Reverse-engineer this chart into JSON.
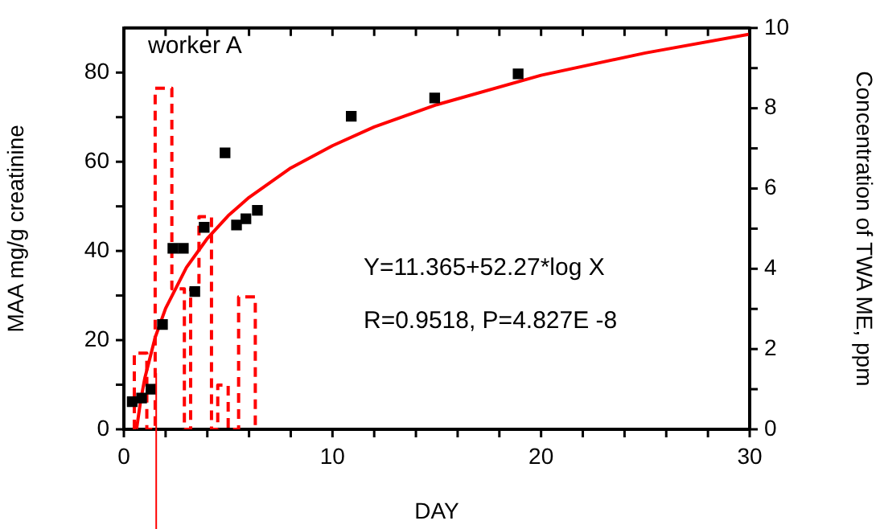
{
  "chart_data": {
    "type": "scatter",
    "xlabel": "DAY",
    "ylabel": "MAA mg/g creatinine",
    "y2label": "Concentration of TWA ME, ppm",
    "xlim": [
      0,
      30
    ],
    "xticks": [
      0,
      {
        "value": 2,
        "label": null
      },
      {
        "value": 4,
        "label": null
      },
      {
        "value": 6,
        "label": null
      },
      {
        "value": 8,
        "label": null
      },
      10,
      {
        "value": 12,
        "label": null
      },
      {
        "value": 14,
        "label": null
      },
      {
        "value": 16,
        "label": null
      },
      {
        "value": 18,
        "label": null
      },
      20,
      {
        "value": 22,
        "label": null
      },
      {
        "value": 24,
        "label": null
      },
      {
        "value": 26,
        "label": null
      },
      {
        "value": 28,
        "label": null
      },
      30
    ],
    "ylim": [
      0,
      90
    ],
    "yticks": [
      0,
      {
        "value": 10,
        "label": null
      },
      20,
      {
        "value": 30,
        "label": null
      },
      40,
      {
        "value": 50,
        "label": null
      },
      60,
      {
        "value": 70,
        "label": null
      },
      80
    ],
    "y2lim": [
      0,
      10
    ],
    "y2ticks": [
      0,
      {
        "value": 1,
        "label": null
      },
      2,
      {
        "value": 3,
        "label": null
      },
      4,
      {
        "value": 5,
        "label": null
      },
      6,
      {
        "value": 7,
        "label": null
      },
      8,
      {
        "value": 9,
        "label": null
      },
      10
    ],
    "grid": false,
    "annotations": [
      "worker A",
      "Y=11.365+52.27*log X",
      "R=0.9518, P=4.827E -8"
    ],
    "ref_lines": [
      {
        "axis": "x",
        "value": 1.55,
        "color": "#ff0000"
      }
    ],
    "series": [
      {
        "type": "scatter",
        "color": "#000000",
        "marker": "square",
        "x": [
          0.4,
          0.85,
          1.3,
          1.85,
          2.35,
          2.85,
          3.4,
          3.85,
          4.85,
          5.4,
          5.85,
          6.4,
          10.9,
          14.9,
          18.9
        ],
        "values": [
          6.2,
          7,
          9,
          23.5,
          40.6,
          40.6,
          30.9,
          45.3,
          62,
          45.8,
          47.2,
          49.1,
          70.2,
          74.3,
          79.7
        ]
      },
      {
        "type": "line",
        "color": "#ff0000",
        "marker": "none",
        "line_style": "solid",
        "x": [
          0.61,
          0.8,
          1,
          1.5,
          2,
          3,
          4,
          5,
          6,
          8,
          10,
          12,
          15,
          20,
          25,
          30
        ],
        "values": [
          0.1,
          6.3,
          11.4,
          20.6,
          27.1,
          36.3,
          42.8,
          47.9,
          52,
          58.6,
          63.6,
          67.8,
          72.8,
          79.4,
          84.4,
          88.6
        ]
      },
      {
        "type": "line",
        "axis": "y2",
        "color": "#ff0000",
        "marker": "none",
        "line_style": "dashed",
        "x": [
          0.5,
          0.5,
          1.1,
          1.1,
          1.5,
          1.5,
          2.3,
          2.3,
          2.9,
          2.9,
          3.2,
          3.2,
          3.6,
          3.6,
          4.2,
          4.2,
          4.5,
          4.5,
          5,
          5,
          5.5,
          5.5,
          6.3,
          6.3
        ],
        "values": [
          0,
          1.9,
          1.9,
          0,
          0,
          8.5,
          8.5,
          3.5,
          3.5,
          0,
          0,
          3.5,
          3.5,
          5.3,
          5.3,
          0,
          0,
          1.1,
          1.1,
          0,
          0,
          3.3,
          3.3,
          0
        ]
      }
    ]
  }
}
